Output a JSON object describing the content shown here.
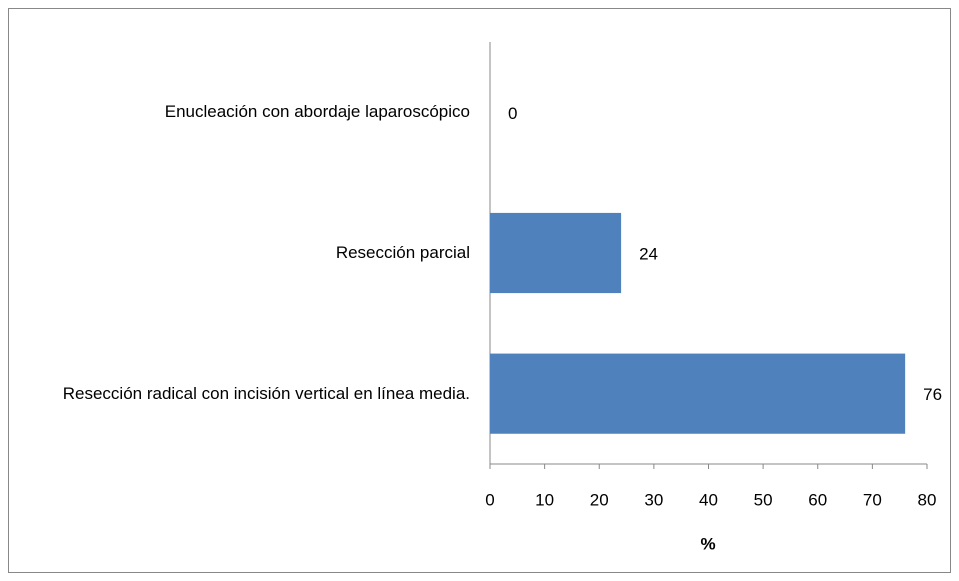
{
  "chart_data": {
    "type": "bar",
    "orientation": "horizontal",
    "categories": [
      "Enucleación con abordaje laparoscópico",
      "Resección parcial",
      "Resección radical con incisión vertical en línea media."
    ],
    "values": [
      0,
      24,
      76
    ],
    "color": "#4f81bd",
    "xlabel": "%",
    "xlim": [
      0,
      80
    ],
    "xticks": [
      0,
      10,
      20,
      30,
      40,
      50,
      60,
      70,
      80
    ],
    "grid": false
  }
}
